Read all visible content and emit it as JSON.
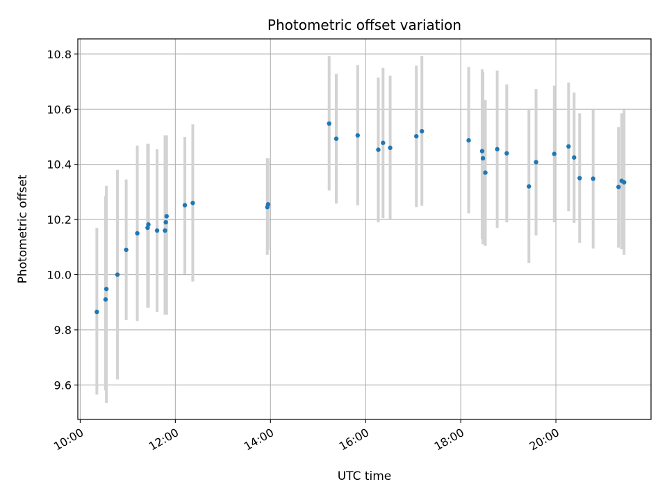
{
  "chart_data": {
    "type": "scatter",
    "title": "Photometric offset variation",
    "xlabel": "UTC time",
    "ylabel": "Photometric offset",
    "xlim": [
      "09:57",
      "22:00"
    ],
    "ylim": [
      9.475,
      10.855
    ],
    "xticks": [
      "10:00",
      "12:00",
      "14:00",
      "16:00",
      "18:00",
      "20:00"
    ],
    "yticks": [
      "9.6",
      "9.8",
      "10.0",
      "10.2",
      "10.4",
      "10.6",
      "10.8"
    ],
    "grid": true,
    "series": [
      {
        "marker_color": "#1f77b4",
        "errorbar_color": "#d3d3d3",
        "points": [
          {
            "t": "10:21",
            "y": 9.865,
            "lo": 9.565,
            "hi": 10.17
          },
          {
            "t": "10:32",
            "y": 9.91,
            "lo": 9.58,
            "hi": 10.285
          },
          {
            "t": "10:33",
            "y": 9.948,
            "lo": 9.535,
            "hi": 10.322
          },
          {
            "t": "10:47",
            "y": 10.0,
            "lo": 9.62,
            "hi": 10.38
          },
          {
            "t": "10:58",
            "y": 10.09,
            "lo": 9.835,
            "hi": 10.345
          },
          {
            "t": "11:12",
            "y": 10.15,
            "lo": 9.832,
            "hi": 10.468
          },
          {
            "t": "11:25",
            "y": 10.17,
            "lo": 9.88,
            "hi": 10.475
          },
          {
            "t": "11:26",
            "y": 10.182,
            "lo": 9.88,
            "hi": 10.475
          },
          {
            "t": "11:37",
            "y": 10.16,
            "lo": 9.865,
            "hi": 10.455
          },
          {
            "t": "11:47",
            "y": 10.16,
            "lo": 9.855,
            "hi": 10.505
          },
          {
            "t": "11:48",
            "y": 10.19,
            "lo": 9.855,
            "hi": 10.505
          },
          {
            "t": "11:49",
            "y": 10.212,
            "lo": 9.855,
            "hi": 10.505
          },
          {
            "t": "12:12",
            "y": 10.252,
            "lo": 10.002,
            "hi": 10.5
          },
          {
            "t": "12:22",
            "y": 10.26,
            "lo": 9.975,
            "hi": 10.545
          },
          {
            "t": "13:56",
            "y": 10.245,
            "lo": 10.072,
            "hi": 10.422
          },
          {
            "t": "13:57",
            "y": 10.255,
            "lo": 10.09,
            "hi": 10.422
          },
          {
            "t": "15:14",
            "y": 10.548,
            "lo": 10.305,
            "hi": 10.792
          },
          {
            "t": "15:23",
            "y": 10.493,
            "lo": 10.258,
            "hi": 10.728
          },
          {
            "t": "15:50",
            "y": 10.505,
            "lo": 10.252,
            "hi": 10.76
          },
          {
            "t": "16:16",
            "y": 10.453,
            "lo": 10.19,
            "hi": 10.715
          },
          {
            "t": "16:22",
            "y": 10.478,
            "lo": 10.205,
            "hi": 10.75
          },
          {
            "t": "16:31",
            "y": 10.46,
            "lo": 10.2,
            "hi": 10.722
          },
          {
            "t": "17:04",
            "y": 10.502,
            "lo": 10.245,
            "hi": 10.758
          },
          {
            "t": "17:11",
            "y": 10.52,
            "lo": 10.25,
            "hi": 10.792
          },
          {
            "t": "18:10",
            "y": 10.487,
            "lo": 10.222,
            "hi": 10.753
          },
          {
            "t": "18:27",
            "y": 10.448,
            "lo": 10.13,
            "hi": 10.745
          },
          {
            "t": "18:28",
            "y": 10.422,
            "lo": 10.11,
            "hi": 10.735
          },
          {
            "t": "18:31",
            "y": 10.37,
            "lo": 10.105,
            "hi": 10.633
          },
          {
            "t": "18:46",
            "y": 10.455,
            "lo": 10.17,
            "hi": 10.74
          },
          {
            "t": "18:58",
            "y": 10.44,
            "lo": 10.19,
            "hi": 10.69
          },
          {
            "t": "19:26",
            "y": 10.32,
            "lo": 10.042,
            "hi": 10.6
          },
          {
            "t": "19:35",
            "y": 10.408,
            "lo": 10.142,
            "hi": 10.673
          },
          {
            "t": "19:58",
            "y": 10.438,
            "lo": 10.19,
            "hi": 10.685
          },
          {
            "t": "20:16",
            "y": 10.465,
            "lo": 10.23,
            "hi": 10.697
          },
          {
            "t": "20:23",
            "y": 10.425,
            "lo": 10.188,
            "hi": 10.66
          },
          {
            "t": "20:30",
            "y": 10.35,
            "lo": 10.115,
            "hi": 10.585
          },
          {
            "t": "20:47",
            "y": 10.348,
            "lo": 10.095,
            "hi": 10.6
          },
          {
            "t": "21:19",
            "y": 10.318,
            "lo": 10.098,
            "hi": 10.535
          },
          {
            "t": "21:23",
            "y": 10.34,
            "lo": 10.092,
            "hi": 10.585
          },
          {
            "t": "21:26",
            "y": 10.335,
            "lo": 10.072,
            "hi": 10.598
          }
        ]
      }
    ]
  }
}
